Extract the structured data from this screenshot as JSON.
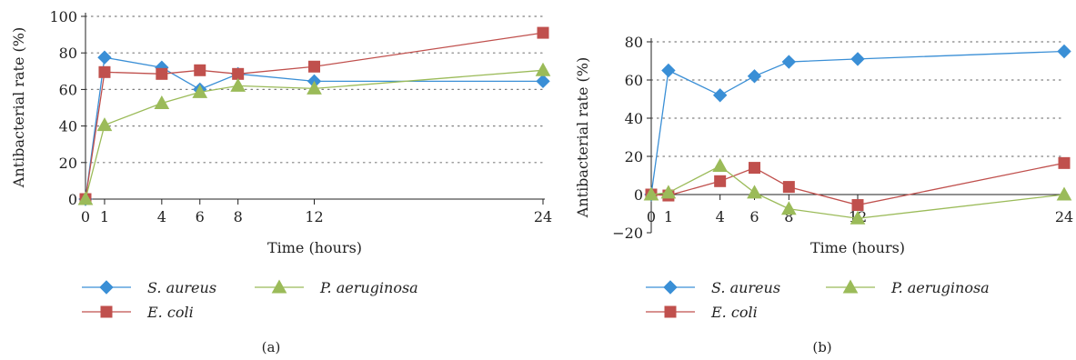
{
  "colors": {
    "s_aureus": "#3a8fd6",
    "e_coli": "#c0504d",
    "p_aeruginosa": "#9bbb59",
    "axis": "#222222",
    "grid": "#7f7f7f"
  },
  "chart_data": [
    {
      "type": "line",
      "panel_label": "(a)",
      "xlabel": "Time (hours)",
      "ylabel": "Antibacterial rate (%)",
      "x_ticks": [
        "0",
        "1",
        "4",
        "6",
        "8",
        "12",
        "24"
      ],
      "y_ticks": [
        "0",
        "20",
        "40",
        "60",
        "80",
        "100"
      ],
      "xlim": [
        0,
        24
      ],
      "ylim": [
        0,
        100
      ],
      "grid": "horizontal dotted",
      "legend_position": "bottom",
      "series": [
        {
          "name": "S. aureus",
          "marker": "diamond",
          "x": [
            0,
            1,
            4,
            6,
            8,
            12,
            24
          ],
          "y": [
            0,
            77.5,
            72,
            60,
            68.5,
            64.5,
            64.5
          ]
        },
        {
          "name": "E. coli",
          "marker": "square",
          "x": [
            0,
            1,
            4,
            6,
            8,
            12,
            24
          ],
          "y": [
            0,
            69.5,
            68.5,
            70.5,
            68.5,
            72.5,
            91
          ]
        },
        {
          "name": "P. aeruginosa",
          "marker": "triangle",
          "x": [
            0,
            1,
            4,
            6,
            8,
            12,
            24
          ],
          "y": [
            0,
            40.5,
            52.5,
            58.5,
            62,
            60.5,
            70.5
          ]
        }
      ]
    },
    {
      "type": "line",
      "panel_label": "(b)",
      "xlabel": "Time (hours)",
      "ylabel": "Antibacterial rate (%)",
      "x_ticks": [
        "0",
        "1",
        "4",
        "6",
        "8",
        "12",
        "24"
      ],
      "y_ticks": [
        "−20",
        "0",
        "20",
        "40",
        "60",
        "80"
      ],
      "xlim": [
        0,
        24
      ],
      "ylim": [
        -20,
        80
      ],
      "grid": "horizontal dotted",
      "legend_position": "bottom",
      "series": [
        {
          "name": "S. aureus",
          "marker": "diamond",
          "x": [
            0,
            1,
            4,
            6,
            8,
            12,
            24
          ],
          "y": [
            0,
            65,
            52,
            62,
            69.5,
            71,
            75
          ]
        },
        {
          "name": "E. coli",
          "marker": "square",
          "x": [
            0,
            1,
            4,
            6,
            8,
            12,
            24
          ],
          "y": [
            0,
            -0.5,
            7,
            14,
            4,
            -5.5,
            16.5
          ]
        },
        {
          "name": "P. aeruginosa",
          "marker": "triangle",
          "x": [
            0,
            1,
            4,
            6,
            8,
            12,
            24
          ],
          "y": [
            0,
            1,
            15,
            1,
            -7.5,
            -12.5,
            0
          ]
        }
      ]
    }
  ]
}
